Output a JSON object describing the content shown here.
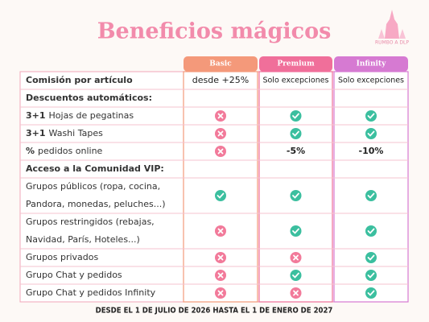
{
  "header": {
    "title": "Beneficios mágicos",
    "logo": "RUMBO A DLP"
  },
  "table": {
    "columns": [
      "Basic",
      "Premium",
      "Infinity"
    ],
    "rows": [
      {
        "label": "Comisión por artículo",
        "cells": [
          "desde +25%",
          "Solo excepciones",
          "Solo excepciones"
        ]
      },
      {
        "label": "Descuentos automáticos:"
      },
      {
        "bold": "3+1",
        "label": "Hojas de pegatinas"
      },
      {
        "bold": "3+1",
        "label": "Washi Tapes"
      },
      {
        "bold": "%",
        "label": "pedidos online",
        "cells": [
          null,
          "-5%",
          "-10%"
        ]
      },
      {
        "label": "Acceso a la Comunidad VIP:"
      },
      {
        "lines": [
          "Grupos públicos (ropa, cocina,",
          "Pandora, monedas, peluches...)"
        ]
      },
      {
        "lines": [
          "Grupos restringidos (rebajas,",
          "Navidad, París, Hoteles...)"
        ]
      },
      {
        "label": "Grupos privados"
      },
      {
        "label": "Grupo Chat y pedidos"
      },
      {
        "label": "Grupo Chat y pedidos Infinity"
      }
    ]
  },
  "footer": "DESDE EL 1 DE JULIO DE 2026 HASTA EL 1 DE ENERO DE 2027"
}
